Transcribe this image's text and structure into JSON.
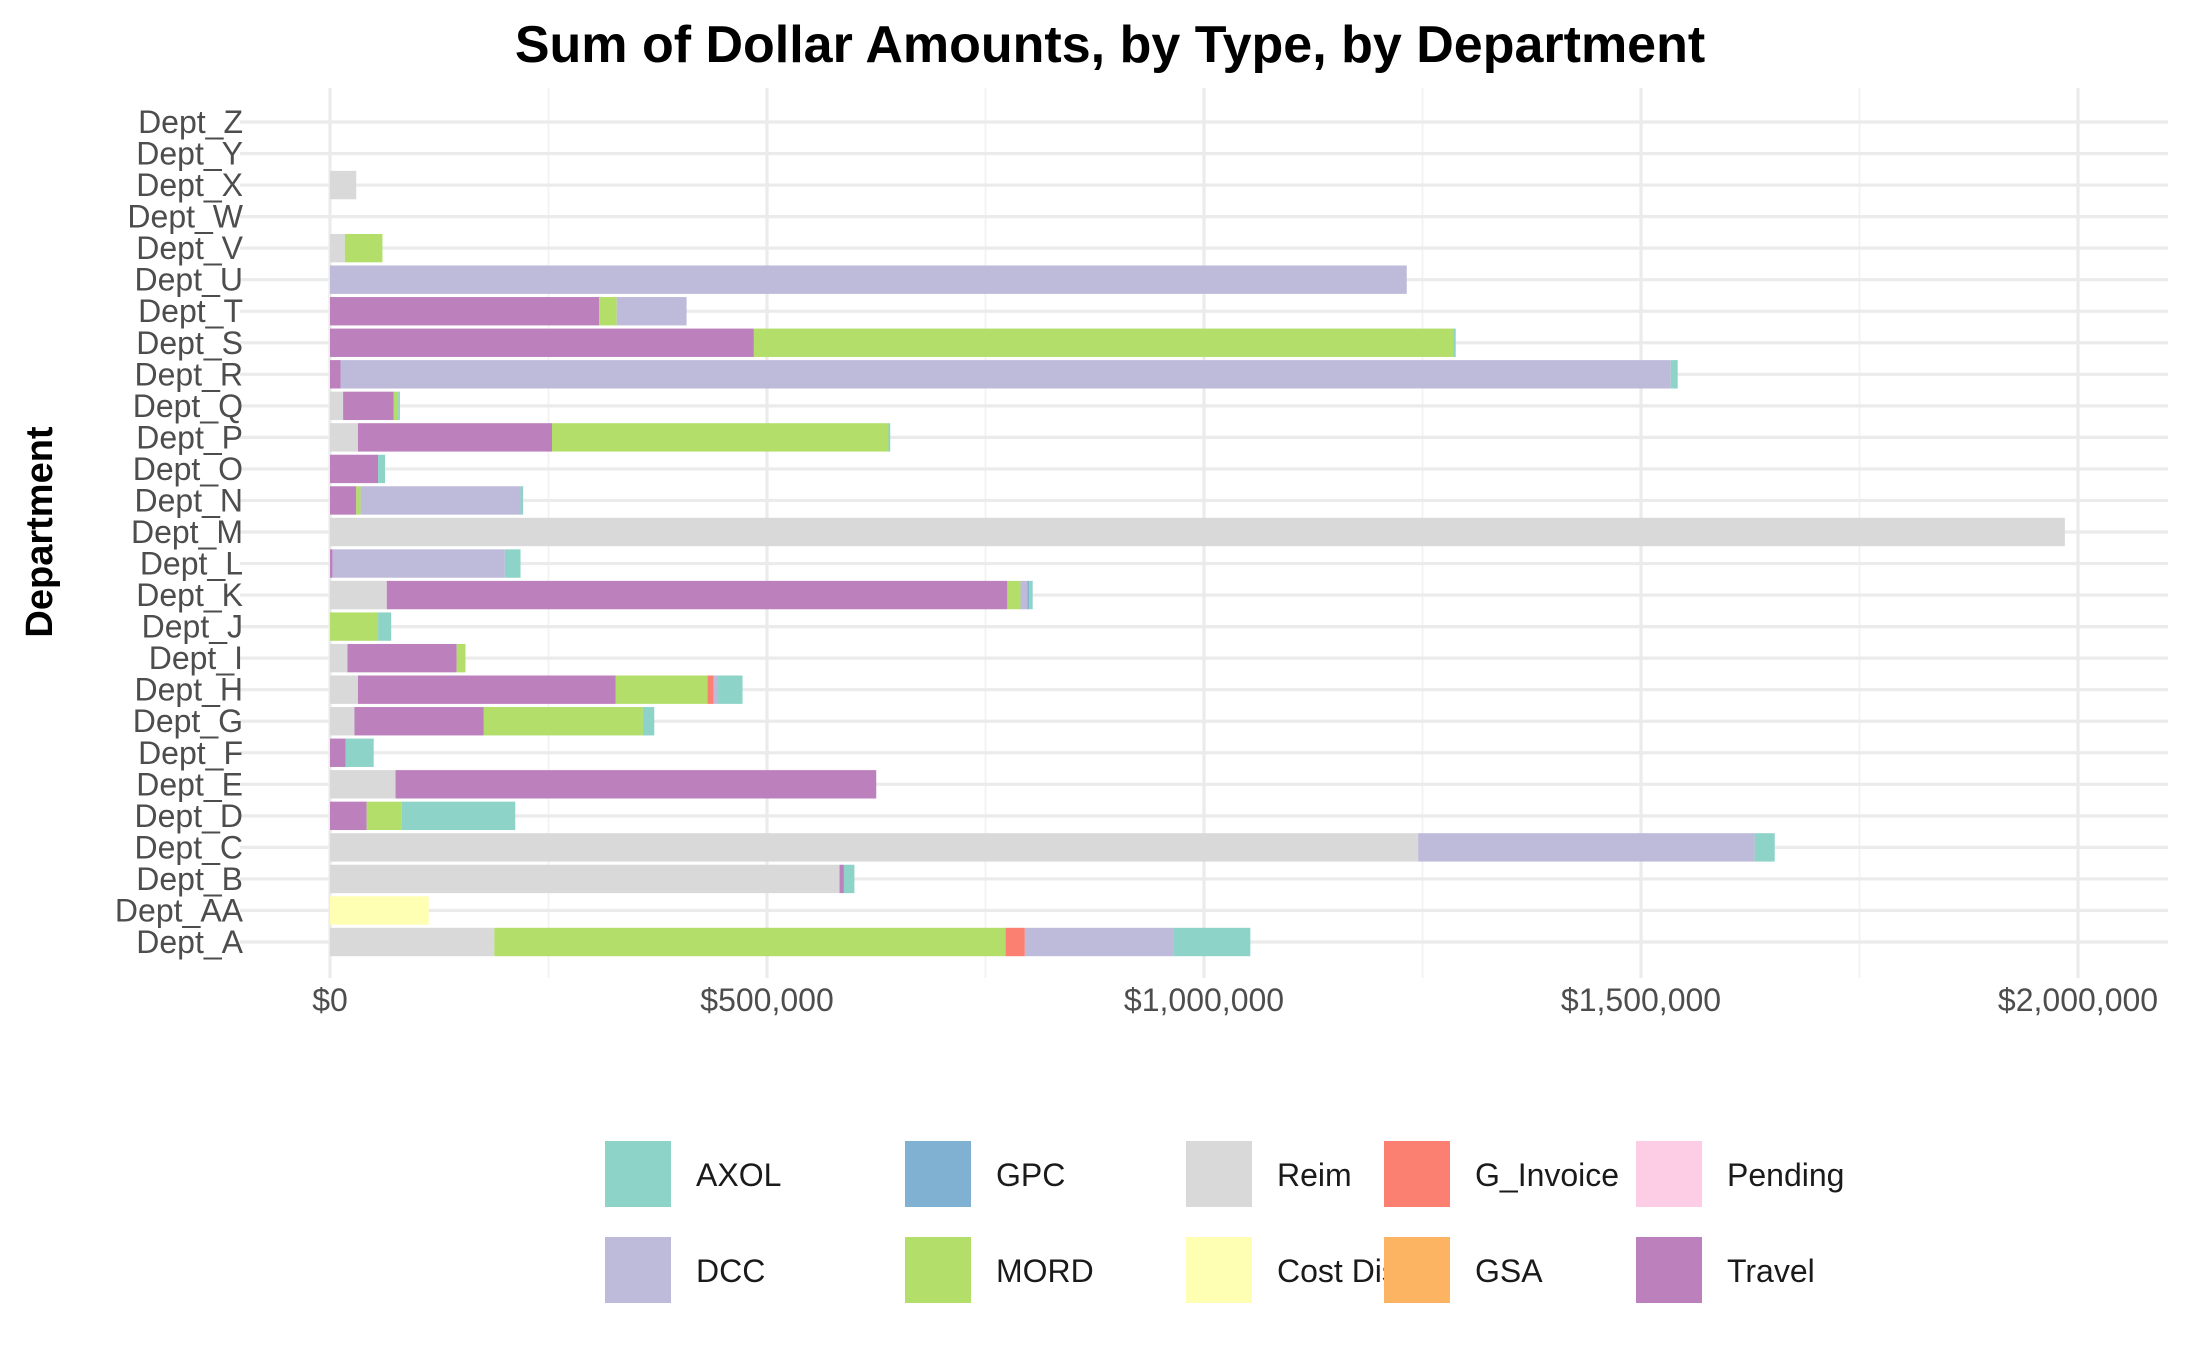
{
  "chart_data": {
    "type": "bar",
    "orientation": "horizontal",
    "stacked": true,
    "title": "Sum of Dollar Amounts, by Type, by Department",
    "xlabel": "",
    "ylabel": "Department",
    "xlim": [
      0,
      2000000
    ],
    "x_ticks": [
      "$0",
      "$500,000",
      "$1,000,000",
      "$1,500,000",
      "$2,000,000"
    ],
    "grid": true,
    "legend_position": "bottom",
    "categories": [
      "Dept_A",
      "Dept_AA",
      "Dept_B",
      "Dept_C",
      "Dept_D",
      "Dept_E",
      "Dept_F",
      "Dept_G",
      "Dept_H",
      "Dept_I",
      "Dept_J",
      "Dept_K",
      "Dept_L",
      "Dept_M",
      "Dept_N",
      "Dept_O",
      "Dept_P",
      "Dept_Q",
      "Dept_R",
      "Dept_S",
      "Dept_T",
      "Dept_U",
      "Dept_V",
      "Dept_W",
      "Dept_X",
      "Dept_Y",
      "Dept_Z"
    ],
    "series": [
      {
        "name": "Reim",
        "color": "#D9D9D9",
        "values": [
          188000,
          0,
          583000,
          1245000,
          0,
          75000,
          0,
          28000,
          32000,
          20000,
          0,
          65000,
          0,
          1985000,
          0,
          0,
          32000,
          15000,
          0,
          0,
          0,
          0,
          17000,
          0,
          30000,
          0,
          0
        ]
      },
      {
        "name": "Cost Distro",
        "color": "#FFFFB3",
        "values": [
          0,
          113000,
          0,
          0,
          0,
          0,
          0,
          0,
          0,
          0,
          0,
          0,
          0,
          0,
          0,
          0,
          0,
          0,
          0,
          0,
          0,
          0,
          0,
          0,
          0,
          0,
          0
        ]
      },
      {
        "name": "Travel",
        "color": "#BC80BD",
        "values": [
          0,
          0,
          5000,
          0,
          42000,
          550000,
          18000,
          148000,
          295000,
          125000,
          0,
          710000,
          3000,
          0,
          30000,
          55000,
          222000,
          58000,
          12000,
          485000,
          308000,
          0,
          0,
          0,
          0,
          0,
          0
        ]
      },
      {
        "name": "MORD",
        "color": "#B3DE69",
        "values": [
          585000,
          0,
          0,
          0,
          40000,
          0,
          0,
          182000,
          105000,
          10000,
          55000,
          15000,
          0,
          0,
          5000,
          0,
          385000,
          5000,
          0,
          800000,
          20000,
          0,
          43000,
          0,
          0,
          0,
          0
        ]
      },
      {
        "name": "G_Invoice",
        "color": "#FB8072",
        "values": [
          22000,
          0,
          0,
          0,
          0,
          0,
          0,
          0,
          7000,
          0,
          0,
          0,
          0,
          0,
          0,
          0,
          0,
          0,
          0,
          0,
          0,
          0,
          0,
          0,
          0,
          0,
          0
        ]
      },
      {
        "name": "DCC",
        "color": "#BEBADA",
        "values": [
          170000,
          0,
          0,
          385000,
          0,
          0,
          0,
          0,
          5000,
          0,
          0,
          8000,
          197000,
          0,
          183000,
          0,
          0,
          0,
          1522000,
          0,
          80000,
          1232000,
          0,
          0,
          0,
          0,
          0
        ]
      },
      {
        "name": "GPC",
        "color": "#80B1D3",
        "values": [
          0,
          0,
          0,
          0,
          0,
          0,
          0,
          0,
          0,
          0,
          0,
          2000,
          0,
          0,
          0,
          0,
          0,
          0,
          0,
          0,
          0,
          0,
          0,
          0,
          0,
          0,
          0
        ]
      },
      {
        "name": "AXOL",
        "color": "#8DD3C7",
        "values": [
          88000,
          0,
          12000,
          23000,
          130000,
          0,
          32000,
          13000,
          28000,
          0,
          15000,
          4000,
          18000,
          0,
          3000,
          8000,
          2000,
          2000,
          8000,
          3000,
          0,
          0,
          0,
          0,
          0,
          0,
          0
        ]
      }
    ],
    "legend": [
      {
        "name": "AXOL",
        "color": "#8DD3C7"
      },
      {
        "name": "DCC",
        "color": "#BEBADA"
      },
      {
        "name": "GPC",
        "color": "#80B1D3"
      },
      {
        "name": "MORD",
        "color": "#B3DE69"
      },
      {
        "name": "Reim",
        "color": "#D9D9D9"
      },
      {
        "name": "Cost Distro",
        "color": "#FFFFB3"
      },
      {
        "name": "G_Invoice",
        "color": "#FB8072"
      },
      {
        "name": "GSA",
        "color": "#FDB462"
      },
      {
        "name": "Pending",
        "color": "#FCCDE5"
      },
      {
        "name": "Travel",
        "color": "#BC80BD"
      }
    ]
  }
}
